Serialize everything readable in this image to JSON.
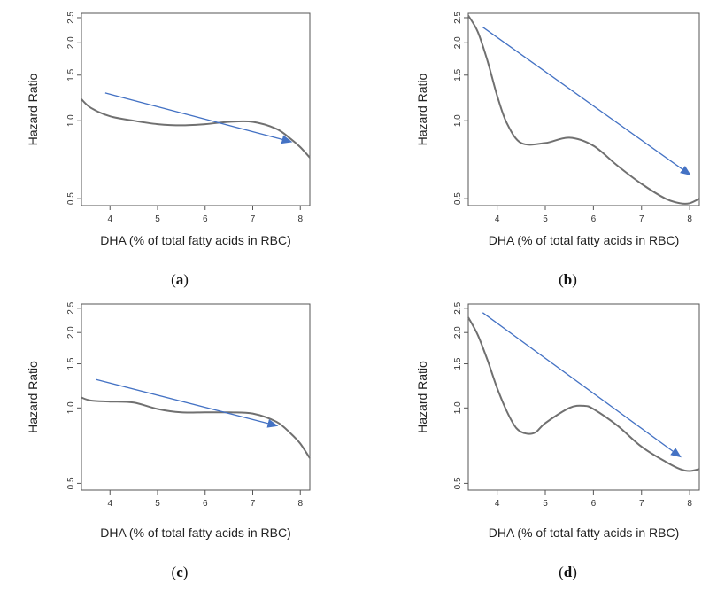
{
  "chart_data": [
    {
      "type": "line",
      "caption_letter": "a",
      "xlabel": "DHA (% of total fatty acids in RBC)",
      "ylabel": "Hazard Ratio",
      "xlim": [
        3.4,
        8.2
      ],
      "ylim": [
        0.47,
        2.6
      ],
      "ylog": true,
      "xticks": [
        4,
        5,
        6,
        7,
        8
      ],
      "yticks": [
        0.5,
        1.0,
        1.5,
        2.0,
        2.5
      ],
      "ytick_labels": [
        "0.5",
        "1.0",
        "1.5",
        "2.0",
        "2.5"
      ],
      "series": [
        {
          "x": [
            3.4,
            3.6,
            4.0,
            4.5,
            5.0,
            5.5,
            6.0,
            6.5,
            7.0,
            7.5,
            7.8,
            8.0,
            8.2
          ],
          "y": [
            1.21,
            1.12,
            1.04,
            1.0,
            0.97,
            0.96,
            0.97,
            0.99,
            0.99,
            0.93,
            0.85,
            0.79,
            0.72
          ]
        }
      ],
      "trend_arrow": {
        "from": [
          3.9,
          1.28
        ],
        "to": [
          7.8,
          0.83
        ]
      }
    },
    {
      "type": "line",
      "caption_letter": "b",
      "xlabel": "DHA (% of total fatty acids in RBC)",
      "ylabel": "Hazard Ratio",
      "xlim": [
        3.4,
        8.2
      ],
      "ylim": [
        0.47,
        2.6
      ],
      "ylog": true,
      "xticks": [
        4,
        5,
        6,
        7,
        8
      ],
      "yticks": [
        0.5,
        1.0,
        1.5,
        2.0,
        2.5
      ],
      "ytick_labels": [
        "0.5",
        "1.0",
        "1.5",
        "2.0",
        "2.5"
      ],
      "series": [
        {
          "x": [
            3.4,
            3.6,
            3.8,
            4.0,
            4.2,
            4.5,
            5.0,
            5.5,
            6.0,
            6.5,
            7.0,
            7.5,
            7.8,
            8.0,
            8.2
          ],
          "y": [
            2.55,
            2.2,
            1.7,
            1.25,
            0.98,
            0.82,
            0.82,
            0.86,
            0.8,
            0.67,
            0.57,
            0.5,
            0.48,
            0.48,
            0.5
          ]
        }
      ],
      "trend_arrow": {
        "from": [
          3.7,
          2.3
        ],
        "to": [
          8.0,
          0.62
        ]
      }
    },
    {
      "type": "line",
      "caption_letter": "c",
      "xlabel": "DHA (% of total fatty acids in RBC)",
      "ylabel": "Hazard Ratio",
      "xlim": [
        3.4,
        8.2
      ],
      "ylim": [
        0.47,
        2.6
      ],
      "ylog": true,
      "xticks": [
        4,
        5,
        6,
        7,
        8
      ],
      "yticks": [
        0.5,
        1.0,
        1.5,
        2.0,
        2.5
      ],
      "ytick_labels": [
        "0.5",
        "1.0",
        "1.5",
        "2.0",
        "2.5"
      ],
      "series": [
        {
          "x": [
            3.4,
            3.6,
            4.0,
            4.5,
            5.0,
            5.5,
            6.0,
            6.5,
            7.0,
            7.5,
            7.8,
            8.0,
            8.2
          ],
          "y": [
            1.1,
            1.07,
            1.06,
            1.05,
            0.99,
            0.96,
            0.96,
            0.96,
            0.95,
            0.88,
            0.79,
            0.72,
            0.63
          ]
        }
      ],
      "trend_arrow": {
        "from": [
          3.7,
          1.3
        ],
        "to": [
          7.5,
          0.85
        ]
      }
    },
    {
      "type": "line",
      "caption_letter": "d",
      "xlabel": "DHA (% of total fatty acids in RBC)",
      "ylabel": "Hazard Ratio",
      "xlim": [
        3.4,
        8.2
      ],
      "ylim": [
        0.47,
        2.6
      ],
      "ylog": true,
      "xticks": [
        4,
        5,
        6,
        7,
        8
      ],
      "yticks": [
        0.5,
        1.0,
        1.5,
        2.0,
        2.5
      ],
      "ytick_labels": [
        "0.5",
        "1.0",
        "1.5",
        "2.0",
        "2.5"
      ],
      "series": [
        {
          "x": [
            3.4,
            3.6,
            3.8,
            4.0,
            4.2,
            4.4,
            4.6,
            4.8,
            5.0,
            5.5,
            5.8,
            6.0,
            6.5,
            7.0,
            7.5,
            7.8,
            8.0,
            8.2
          ],
          "y": [
            2.3,
            1.95,
            1.55,
            1.2,
            0.97,
            0.83,
            0.79,
            0.8,
            0.87,
            1.0,
            1.02,
            0.99,
            0.85,
            0.7,
            0.61,
            0.57,
            0.56,
            0.57
          ]
        }
      ],
      "trend_arrow": {
        "from": [
          3.7,
          2.4
        ],
        "to": [
          7.8,
          0.64
        ]
      }
    }
  ],
  "colors": {
    "curve": "#707070",
    "arrow": "#4472c4",
    "frame": "#555555"
  }
}
